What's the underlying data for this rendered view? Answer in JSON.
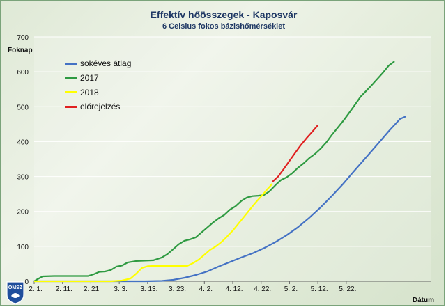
{
  "chart_data": {
    "type": "line",
    "title": "Effektív hőösszegek - Kaposvár",
    "subtitle": "6 Celsius fokos bázishőmérséklet",
    "ylabel": "Foknap",
    "xlabel": "Dátum",
    "ylim": [
      0,
      700
    ],
    "yticks": [
      "0",
      "100",
      "200",
      "300",
      "400",
      "500",
      "600",
      "700"
    ],
    "xlim": [
      1,
      141
    ],
    "xticks": [
      {
        "day": 1,
        "label": "2. 1."
      },
      {
        "day": 11,
        "label": "2. 11."
      },
      {
        "day": 21,
        "label": "2. 21."
      },
      {
        "day": 31,
        "label": "3. 3."
      },
      {
        "day": 41,
        "label": "3. 13."
      },
      {
        "day": 51,
        "label": "3. 23."
      },
      {
        "day": 61,
        "label": "4. 2."
      },
      {
        "day": 71,
        "label": "4. 12."
      },
      {
        "day": 81,
        "label": "4. 22."
      },
      {
        "day": 91,
        "label": "5. 2."
      },
      {
        "day": 101,
        "label": "5. 12."
      },
      {
        "day": 111,
        "label": "5. 22."
      }
    ],
    "grid": true,
    "legend_position": "top-left",
    "series": [
      {
        "name": "sokéves átlag",
        "color": "#4472c4",
        "points": [
          [
            1,
            0
          ],
          [
            10,
            0
          ],
          [
            20,
            0
          ],
          [
            30,
            0
          ],
          [
            40,
            0
          ],
          [
            46,
            1
          ],
          [
            50,
            4
          ],
          [
            54,
            10
          ],
          [
            58,
            18
          ],
          [
            62,
            28
          ],
          [
            66,
            42
          ],
          [
            70,
            55
          ],
          [
            74,
            68
          ],
          [
            78,
            80
          ],
          [
            82,
            95
          ],
          [
            86,
            112
          ],
          [
            90,
            132
          ],
          [
            94,
            155
          ],
          [
            98,
            182
          ],
          [
            102,
            212
          ],
          [
            106,
            245
          ],
          [
            110,
            280
          ],
          [
            114,
            318
          ],
          [
            118,
            355
          ],
          [
            122,
            392
          ],
          [
            126,
            430
          ],
          [
            130,
            465
          ],
          [
            132,
            472
          ]
        ]
      },
      {
        "name": "2017",
        "color": "#2e9a41",
        "points": [
          [
            1,
            0
          ],
          [
            2,
            5
          ],
          [
            4,
            14
          ],
          [
            8,
            15
          ],
          [
            14,
            15
          ],
          [
            20,
            15
          ],
          [
            22,
            20
          ],
          [
            24,
            27
          ],
          [
            26,
            28
          ],
          [
            28,
            32
          ],
          [
            30,
            42
          ],
          [
            32,
            45
          ],
          [
            34,
            54
          ],
          [
            37,
            58
          ],
          [
            40,
            59
          ],
          [
            43,
            60
          ],
          [
            46,
            68
          ],
          [
            48,
            78
          ],
          [
            50,
            92
          ],
          [
            52,
            106
          ],
          [
            54,
            116
          ],
          [
            56,
            120
          ],
          [
            58,
            126
          ],
          [
            60,
            140
          ],
          [
            62,
            154
          ],
          [
            64,
            168
          ],
          [
            66,
            180
          ],
          [
            68,
            190
          ],
          [
            70,
            205
          ],
          [
            72,
            215
          ],
          [
            74,
            230
          ],
          [
            76,
            240
          ],
          [
            78,
            244
          ],
          [
            80,
            245
          ],
          [
            82,
            247
          ],
          [
            84,
            258
          ],
          [
            86,
            275
          ],
          [
            88,
            290
          ],
          [
            90,
            298
          ],
          [
            92,
            310
          ],
          [
            94,
            325
          ],
          [
            96,
            338
          ],
          [
            98,
            353
          ],
          [
            100,
            365
          ],
          [
            102,
            380
          ],
          [
            104,
            398
          ],
          [
            106,
            420
          ],
          [
            108,
            440
          ],
          [
            110,
            460
          ],
          [
            112,
            482
          ],
          [
            114,
            505
          ],
          [
            116,
            528
          ],
          [
            118,
            545
          ],
          [
            120,
            562
          ],
          [
            122,
            580
          ],
          [
            124,
            598
          ],
          [
            126,
            618
          ],
          [
            128,
            630
          ]
        ]
      },
      {
        "name": "2018",
        "color": "#ffff00",
        "points": [
          [
            1,
            0
          ],
          [
            10,
            0
          ],
          [
            20,
            0
          ],
          [
            28,
            0
          ],
          [
            32,
            2
          ],
          [
            35,
            8
          ],
          [
            37,
            22
          ],
          [
            39,
            38
          ],
          [
            41,
            43
          ],
          [
            44,
            44
          ],
          [
            48,
            44
          ],
          [
            52,
            44
          ],
          [
            55,
            44
          ],
          [
            57,
            52
          ],
          [
            59,
            62
          ],
          [
            61,
            76
          ],
          [
            63,
            90
          ],
          [
            65,
            100
          ],
          [
            67,
            112
          ],
          [
            69,
            128
          ],
          [
            71,
            145
          ],
          [
            73,
            165
          ],
          [
            75,
            185
          ],
          [
            77,
            205
          ],
          [
            79,
            225
          ],
          [
            81,
            243
          ],
          [
            83,
            262
          ],
          [
            85,
            280
          ]
        ]
      },
      {
        "name": "előrejelzés",
        "color": "#e02020",
        "points": [
          [
            85,
            285
          ],
          [
            87,
            300
          ],
          [
            89,
            322
          ],
          [
            91,
            345
          ],
          [
            93,
            368
          ],
          [
            95,
            390
          ],
          [
            97,
            410
          ],
          [
            99,
            428
          ],
          [
            101,
            447
          ]
        ]
      }
    ]
  },
  "logo": {
    "text": "OMSZ"
  }
}
